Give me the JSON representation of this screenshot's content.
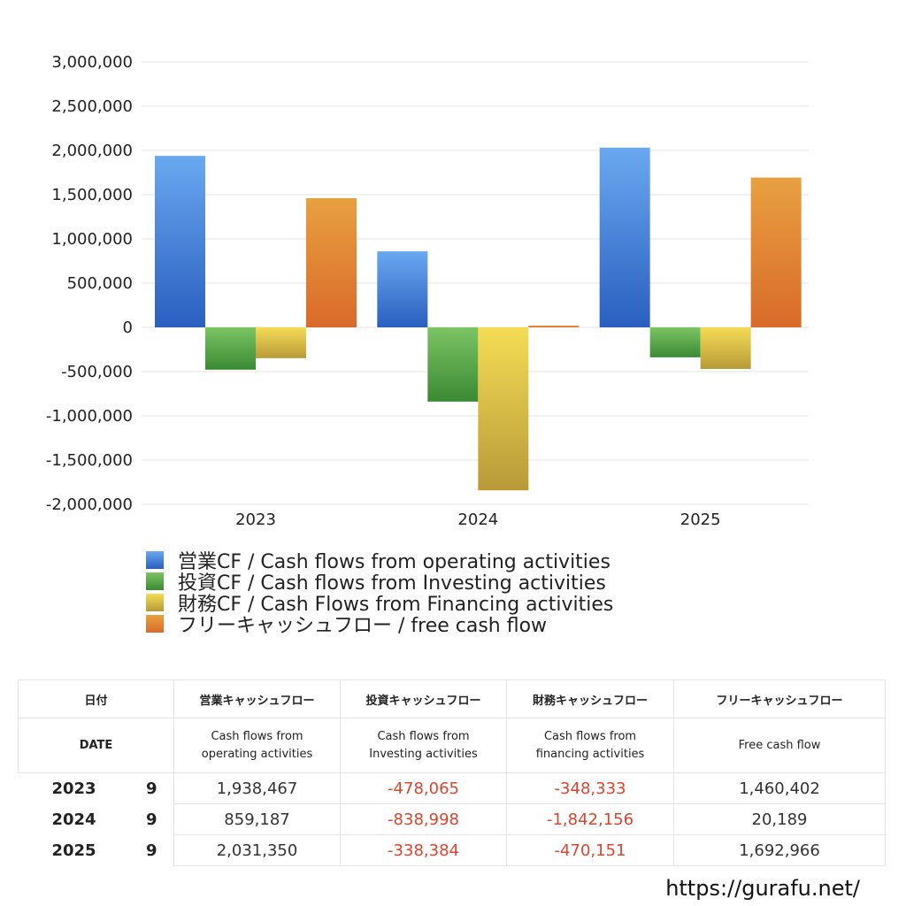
{
  "chart_data": {
    "type": "bar",
    "categories": [
      "2023",
      "2024",
      "2025"
    ],
    "series": [
      {
        "name": "営業CF / Cash flows from operating activities",
        "values": [
          1938467,
          859187,
          2031350
        ],
        "color": "#3a78d6",
        "color_top": "#6aa8f0",
        "color_bottom": "#2a5fc0"
      },
      {
        "name": "投資CF / Cash flows from Investing activities",
        "values": [
          -478065,
          -838998,
          -338384
        ],
        "color": "#4a9a3e",
        "color_top": "#7cc465",
        "color_bottom": "#3a8a33"
      },
      {
        "name": "財務CF / Cash Flows from Financing activities",
        "values": [
          -348333,
          -1842156,
          -470151
        ],
        "color": "#e0c040",
        "color_top": "#f4dc55",
        "color_bottom": "#b89a38"
      },
      {
        "name": "フリーキャッシュフロー / free cash flow",
        "values": [
          1460402,
          20189,
          1692966
        ],
        "color": "#e0863a",
        "color_top": "#e8a040",
        "color_bottom": "#d96a2a"
      }
    ],
    "ylim": [
      -2000000,
      3000000
    ],
    "yticks": [
      3000000,
      2500000,
      2000000,
      1500000,
      1000000,
      500000,
      0,
      -500000,
      -1000000,
      -1500000,
      -2000000
    ],
    "ytick_labels": [
      "3,000,000",
      "2,500,000",
      "2,000,000",
      "1,500,000",
      "1,000,000",
      "500,000",
      "0",
      "-500,000",
      "-1,000,000",
      "-1,500,000",
      "-2,000,000"
    ],
    "grid": true,
    "legend": "bottom"
  },
  "table": {
    "header_ja": [
      "日付",
      "営業キャッシュフロー",
      "投資キャッシュフロー",
      "財務キャッシュフロー",
      "フリーキャッシュフロー"
    ],
    "header_en": [
      "DATE",
      "Cash flows from\noperating activities",
      "Cash flows from\nInvesting activities",
      "Cash flows from\nfinancing activities",
      "Free cash flow"
    ],
    "rows": [
      {
        "year": "2023",
        "month": "9",
        "op": "1,938,467",
        "inv": "-478,065",
        "fin": "-348,333",
        "free": "1,460,402"
      },
      {
        "year": "2024",
        "month": "9",
        "op": "859,187",
        "inv": "-838,998",
        "fin": "-1,842,156",
        "free": "20,189"
      },
      {
        "year": "2025",
        "month": "9",
        "op": "2,031,350",
        "inv": "-338,384",
        "fin": "-470,151",
        "free": "1,692,966"
      }
    ]
  },
  "footer": {
    "url": "https://gurafu.net/"
  }
}
